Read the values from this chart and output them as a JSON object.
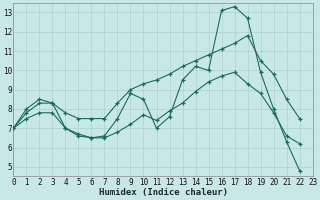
{
  "xlabel": "Humidex (Indice chaleur)",
  "bg_color": "#c8e8e8",
  "grid_color": "#acd0d0",
  "line_color": "#1a6a5a",
  "xlim": [
    0,
    23
  ],
  "ylim": [
    4.5,
    13.5
  ],
  "xticks": [
    0,
    1,
    2,
    3,
    4,
    5,
    6,
    7,
    8,
    9,
    10,
    11,
    12,
    13,
    14,
    15,
    16,
    17,
    18,
    19,
    20,
    21,
    22,
    23
  ],
  "yticks": [
    5,
    6,
    7,
    8,
    9,
    10,
    11,
    12,
    13
  ],
  "series1_x": [
    0,
    1,
    2,
    3,
    4,
    5,
    6,
    7,
    8,
    9,
    10,
    11,
    12,
    13,
    14,
    15,
    16,
    17,
    18,
    19,
    20,
    21,
    22
  ],
  "series1_y": [
    7.0,
    8.0,
    8.5,
    8.3,
    7.0,
    6.6,
    6.5,
    6.6,
    7.5,
    8.8,
    8.5,
    7.0,
    7.6,
    9.5,
    10.2,
    10.0,
    13.1,
    13.3,
    12.7,
    9.9,
    8.0,
    6.3,
    4.8
  ],
  "series2_x": [
    0,
    1,
    2,
    3,
    4,
    5,
    6,
    7,
    8,
    9,
    10,
    11,
    12,
    13,
    14,
    15,
    16,
    17,
    18,
    19,
    20,
    21,
    22
  ],
  "series2_y": [
    7.0,
    7.8,
    8.3,
    8.3,
    7.8,
    7.5,
    7.5,
    7.5,
    8.3,
    9.0,
    9.3,
    9.5,
    9.8,
    10.2,
    10.5,
    10.8,
    11.1,
    11.4,
    11.8,
    10.5,
    9.8,
    8.5,
    7.5
  ],
  "series3_x": [
    0,
    1,
    2,
    3,
    4,
    5,
    6,
    7,
    8,
    9,
    10,
    11,
    12,
    13,
    14,
    15,
    16,
    17,
    18,
    19,
    20,
    21,
    22
  ],
  "series3_y": [
    7.0,
    7.5,
    7.8,
    7.8,
    7.0,
    6.7,
    6.5,
    6.5,
    6.8,
    7.2,
    7.7,
    7.4,
    7.9,
    8.3,
    8.9,
    9.4,
    9.7,
    9.9,
    9.3,
    8.8,
    7.8,
    6.6,
    6.2
  ]
}
